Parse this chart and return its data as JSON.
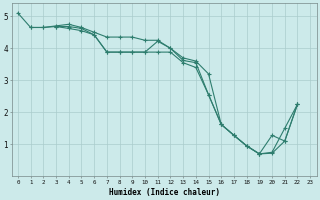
{
  "xlabel": "Humidex (Indice chaleur)",
  "bg_color": "#cceaea",
  "grid_color": "#aacccc",
  "line_color": "#2e7d6e",
  "xmin": -0.5,
  "xmax": 23.5,
  "ymin": 0,
  "ymax": 5.4,
  "yticks": [
    1,
    2,
    3,
    4,
    5
  ],
  "xticks": [
    0,
    1,
    2,
    3,
    4,
    5,
    6,
    7,
    8,
    9,
    10,
    11,
    12,
    13,
    14,
    15,
    16,
    17,
    18,
    19,
    20,
    21,
    22,
    23
  ],
  "line1": {
    "x": [
      0,
      1,
      2,
      3,
      4,
      5,
      6,
      7,
      8,
      9,
      10,
      11,
      12,
      13,
      14,
      15,
      16,
      17,
      18,
      19,
      20,
      21,
      22
    ],
    "y": [
      5.1,
      4.65,
      4.65,
      4.7,
      4.75,
      4.65,
      4.5,
      4.35,
      4.35,
      4.35,
      4.25,
      4.25,
      4.0,
      3.7,
      3.6,
      3.2,
      1.62,
      1.28,
      0.95,
      0.7,
      1.28,
      1.1,
      2.25
    ]
  },
  "line2": {
    "x": [
      1,
      2,
      3,
      4,
      5,
      6,
      7,
      8,
      9,
      10,
      11,
      12,
      13,
      14,
      15,
      16,
      17,
      18,
      19,
      20,
      21,
      22
    ],
    "y": [
      4.65,
      4.65,
      4.68,
      4.68,
      4.62,
      4.42,
      3.88,
      3.88,
      3.88,
      3.88,
      4.22,
      4.0,
      3.62,
      3.55,
      2.55,
      1.62,
      1.28,
      0.95,
      0.7,
      0.75,
      1.5,
      2.25
    ]
  },
  "line3": {
    "x": [
      3,
      4,
      5,
      6,
      7,
      8,
      9,
      10,
      11,
      12,
      13,
      14,
      15,
      16,
      17,
      18,
      19,
      20,
      21,
      22
    ],
    "y": [
      4.68,
      4.62,
      4.55,
      4.42,
      3.88,
      3.88,
      3.88,
      3.88,
      3.88,
      3.88,
      3.55,
      3.4,
      2.55,
      1.62,
      1.28,
      0.95,
      0.7,
      0.72,
      1.1,
      2.25
    ]
  }
}
